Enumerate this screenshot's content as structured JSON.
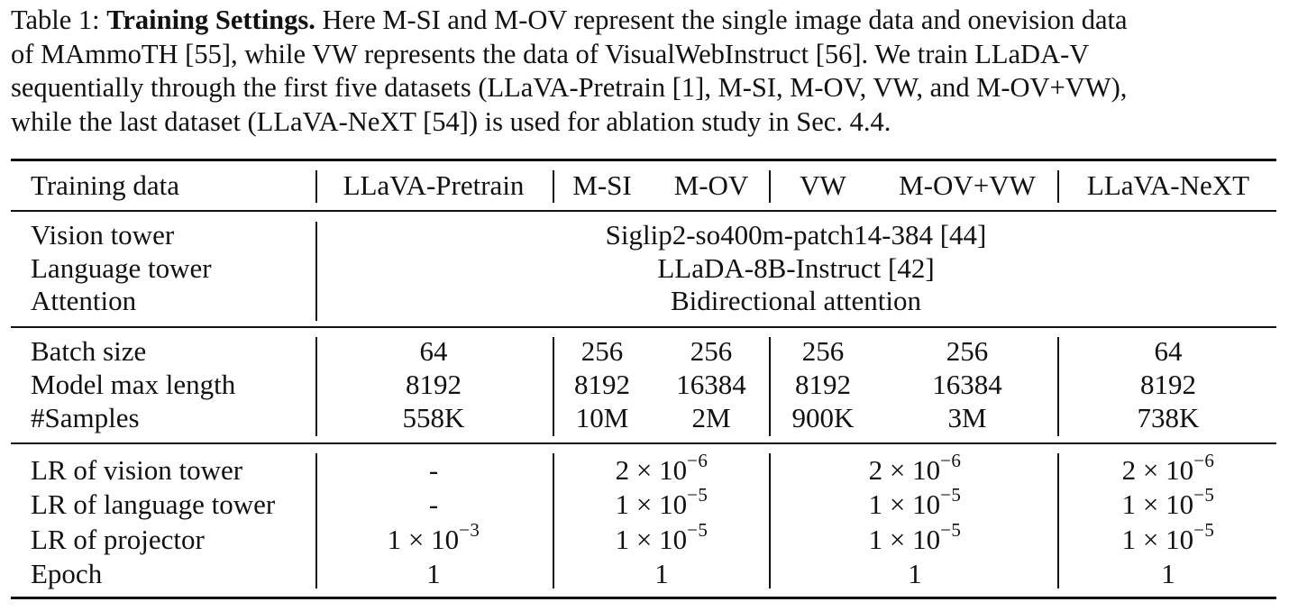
{
  "caption": {
    "label": "Table 1:",
    "title": "Training Settings.",
    "line1_rest": "Here M-SI and M-OV represent the single image data and onevision data",
    "line2": "of MAmmoTH [55], while VW represents the data of VisualWebInstruct [56]. We train LLaDA-V",
    "line3": "sequentially through the first five datasets (LLaVA-Pretrain [1], M-SI, M-OV, VW, and M-OV+VW),",
    "line4": "while the last dataset (LLaVA-NeXT [54]) is used for ablation study in Sec. 4.4."
  },
  "header": {
    "row_label": "Training data",
    "cols": [
      "LLaVA-Pretrain",
      "M-SI",
      "M-OV",
      "VW",
      "M-OV+VW",
      "LLaVA-NeXT"
    ]
  },
  "arch": {
    "labels": [
      "Vision tower",
      "Language tower",
      "Attention"
    ],
    "values": [
      "Siglip2-so400m-patch14-384 [44]",
      "LLaDA-8B-Instruct [42]",
      "Bidirectional attention"
    ]
  },
  "data": {
    "labels": [
      "Batch size",
      "Model max length",
      "#Samples"
    ],
    "rows": [
      [
        "64",
        "256",
        "256",
        "256",
        "256",
        "64"
      ],
      [
        "8192",
        "8192",
        "16384",
        "8192",
        "16384",
        "8192"
      ],
      [
        "558K",
        "10M",
        "2M",
        "900K",
        "3M",
        "738K"
      ]
    ]
  },
  "train": {
    "labels": [
      "LR of vision tower",
      "LR of language tower",
      "LR of projector",
      "Epoch"
    ],
    "dash": "-",
    "times": "×",
    "lr_vision": {
      "mantissa": "2",
      "base": "10",
      "exp": "−6"
    },
    "lr_language": {
      "mantissa": "1",
      "base": "10",
      "exp": "−5"
    },
    "lr_projector_pretrain": {
      "mantissa": "1",
      "base": "10",
      "exp": "−3"
    },
    "lr_projector": {
      "mantissa": "1",
      "base": "10",
      "exp": "−5"
    },
    "epoch": "1"
  }
}
